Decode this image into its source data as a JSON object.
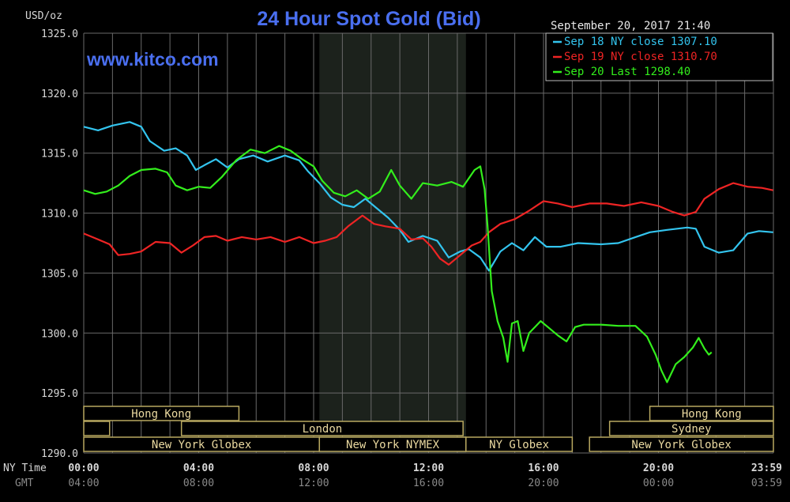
{
  "chart_data": {
    "type": "line",
    "title": "24 Hour Spot Gold (Bid)",
    "watermark": "www.kitco.com",
    "unit_label": "USD/oz",
    "timestamp": "September 20, 2017 21:40",
    "ylim": [
      1290,
      1325
    ],
    "y_ticks": [
      "1325.0",
      "1320.0",
      "1315.0",
      "1310.0",
      "1305.0",
      "1300.0",
      "1295.0",
      "1290.0"
    ],
    "y_tick_values": [
      1325,
      1320,
      1315,
      1310,
      1305,
      1300,
      1295,
      1290
    ],
    "x_range_hours": [
      0,
      24
    ],
    "ny_time_label": "NY Time",
    "gmt_label": "GMT",
    "x_ticks_ny": [
      "00:00",
      "04:00",
      "08:00",
      "12:00",
      "16:00",
      "20:00",
      "23:59"
    ],
    "x_ticks_gmt": [
      "04:00",
      "08:00",
      "12:00",
      "16:00",
      "20:00",
      "00:00",
      "03:59"
    ],
    "x_tick_hours": [
      0,
      4,
      8,
      12,
      16,
      20,
      24
    ],
    "grid": true,
    "legend_placement": "top-right",
    "shaded_period_hours": [
      8.2,
      13.3
    ],
    "colors": {
      "background": "#000000",
      "grid": "#6a6a6a",
      "title": "#4a6ff0",
      "axis_text": "#d8d8d8",
      "gmt_text": "#8a8a8a",
      "shade": "#1c221c",
      "session_box": "#b8a860",
      "session_text": "#ead9a0"
    },
    "sessions": [
      {
        "label": "Hong Kong",
        "start": 0,
        "end": 5.4,
        "row": 0
      },
      {
        "label": "",
        "start": 0,
        "end": 0.9,
        "row": 1
      },
      {
        "label": "London",
        "start": 3.4,
        "end": 13.2,
        "row": 1
      },
      {
        "label": "New York Globex",
        "start": 0,
        "end": 8.2,
        "row": 2
      },
      {
        "label": "New York NYMEX",
        "start": 8.2,
        "end": 13.3,
        "row": 2
      },
      {
        "label": "NY Globex",
        "start": 13.3,
        "end": 17.0,
        "row": 2
      },
      {
        "label": "Hong Kong",
        "start": 19.7,
        "end": 24,
        "row": 0
      },
      {
        "label": "Sydney",
        "start": 18.3,
        "end": 24,
        "row": 1
      },
      {
        "label": "New York Globex",
        "start": 17.6,
        "end": 24,
        "row": 2
      }
    ],
    "series": [
      {
        "name": "Sep 18 NY close 1307.10",
        "color": "#33c4ee",
        "points": [
          [
            0,
            1317.2
          ],
          [
            0.5,
            1316.9
          ],
          [
            1,
            1317.3
          ],
          [
            1.6,
            1317.6
          ],
          [
            2,
            1317.2
          ],
          [
            2.3,
            1316.0
          ],
          [
            2.8,
            1315.2
          ],
          [
            3.2,
            1315.4
          ],
          [
            3.6,
            1314.8
          ],
          [
            3.9,
            1313.6
          ],
          [
            4.2,
            1314.0
          ],
          [
            4.6,
            1314.5
          ],
          [
            5,
            1313.8
          ],
          [
            5.4,
            1314.5
          ],
          [
            5.9,
            1314.8
          ],
          [
            6.4,
            1314.3
          ],
          [
            7,
            1314.8
          ],
          [
            7.5,
            1314.4
          ],
          [
            7.8,
            1313.5
          ],
          [
            8.2,
            1312.5
          ],
          [
            8.6,
            1311.3
          ],
          [
            9,
            1310.7
          ],
          [
            9.4,
            1310.5
          ],
          [
            9.8,
            1311.2
          ],
          [
            10.2,
            1310.4
          ],
          [
            10.6,
            1309.6
          ],
          [
            11,
            1308.6
          ],
          [
            11.3,
            1307.6
          ],
          [
            11.8,
            1308.1
          ],
          [
            12.3,
            1307.7
          ],
          [
            12.7,
            1306.3
          ],
          [
            13.1,
            1306.8
          ],
          [
            13.4,
            1307.0
          ],
          [
            13.8,
            1306.3
          ],
          [
            14.1,
            1305.2
          ],
          [
            14.5,
            1306.8
          ],
          [
            14.9,
            1307.5
          ],
          [
            15.3,
            1306.9
          ],
          [
            15.7,
            1308.0
          ],
          [
            16.1,
            1307.2
          ],
          [
            16.6,
            1307.2
          ],
          [
            17.2,
            1307.5
          ],
          [
            18,
            1307.4
          ],
          [
            18.6,
            1307.5
          ],
          [
            19.2,
            1308.0
          ],
          [
            19.7,
            1308.4
          ],
          [
            20.3,
            1308.6
          ],
          [
            21.0,
            1308.8
          ],
          [
            21.3,
            1308.7
          ],
          [
            21.6,
            1307.2
          ],
          [
            22.1,
            1306.7
          ],
          [
            22.6,
            1306.9
          ],
          [
            23.1,
            1308.3
          ],
          [
            23.5,
            1308.5
          ],
          [
            23.99,
            1308.4
          ]
        ]
      },
      {
        "name": "Sep 19 NY close 1310.70",
        "color": "#ee2424",
        "points": [
          [
            0,
            1308.3
          ],
          [
            0.5,
            1307.8
          ],
          [
            0.9,
            1307.4
          ],
          [
            1.2,
            1306.5
          ],
          [
            1.6,
            1306.6
          ],
          [
            2,
            1306.8
          ],
          [
            2.5,
            1307.6
          ],
          [
            3,
            1307.5
          ],
          [
            3.4,
            1306.7
          ],
          [
            3.8,
            1307.3
          ],
          [
            4.2,
            1308.0
          ],
          [
            4.6,
            1308.1
          ],
          [
            5,
            1307.7
          ],
          [
            5.5,
            1308.0
          ],
          [
            6,
            1307.8
          ],
          [
            6.5,
            1308.0
          ],
          [
            7,
            1307.6
          ],
          [
            7.5,
            1308.0
          ],
          [
            8,
            1307.5
          ],
          [
            8.4,
            1307.7
          ],
          [
            8.8,
            1308.0
          ],
          [
            9.2,
            1308.9
          ],
          [
            9.7,
            1309.8
          ],
          [
            10.1,
            1309.1
          ],
          [
            10.5,
            1308.9
          ],
          [
            11,
            1308.7
          ],
          [
            11.4,
            1307.8
          ],
          [
            11.8,
            1307.9
          ],
          [
            12.1,
            1307.2
          ],
          [
            12.4,
            1306.2
          ],
          [
            12.7,
            1305.7
          ],
          [
            13.1,
            1306.5
          ],
          [
            13.5,
            1307.3
          ],
          [
            13.8,
            1307.6
          ],
          [
            14.1,
            1308.4
          ],
          [
            14.5,
            1309.1
          ],
          [
            15,
            1309.5
          ],
          [
            15.5,
            1310.2
          ],
          [
            16,
            1311.0
          ],
          [
            16.5,
            1310.8
          ],
          [
            17,
            1310.5
          ],
          [
            17.6,
            1310.8
          ],
          [
            18.2,
            1310.8
          ],
          [
            18.8,
            1310.6
          ],
          [
            19.4,
            1310.9
          ],
          [
            20,
            1310.6
          ],
          [
            20.5,
            1310.1
          ],
          [
            20.9,
            1309.8
          ],
          [
            21.3,
            1310.1
          ],
          [
            21.6,
            1311.2
          ],
          [
            22.1,
            1312.0
          ],
          [
            22.6,
            1312.5
          ],
          [
            23.1,
            1312.2
          ],
          [
            23.6,
            1312.1
          ],
          [
            23.99,
            1311.9
          ]
        ]
      },
      {
        "name": "Sep 20 Last 1298.40",
        "color": "#33ee1c",
        "points": [
          [
            0,
            1311.9
          ],
          [
            0.4,
            1311.6
          ],
          [
            0.8,
            1311.8
          ],
          [
            1.2,
            1312.3
          ],
          [
            1.6,
            1313.1
          ],
          [
            2.0,
            1313.6
          ],
          [
            2.5,
            1313.7
          ],
          [
            2.9,
            1313.4
          ],
          [
            3.2,
            1312.3
          ],
          [
            3.6,
            1311.9
          ],
          [
            4.0,
            1312.2
          ],
          [
            4.4,
            1312.1
          ],
          [
            4.8,
            1313.0
          ],
          [
            5.3,
            1314.4
          ],
          [
            5.8,
            1315.3
          ],
          [
            6.3,
            1315.0
          ],
          [
            6.8,
            1315.6
          ],
          [
            7.2,
            1315.2
          ],
          [
            7.6,
            1314.5
          ],
          [
            8.0,
            1313.9
          ],
          [
            8.3,
            1312.7
          ],
          [
            8.7,
            1311.7
          ],
          [
            9.1,
            1311.4
          ],
          [
            9.5,
            1311.9
          ],
          [
            9.9,
            1311.2
          ],
          [
            10.3,
            1311.8
          ],
          [
            10.7,
            1313.6
          ],
          [
            11.0,
            1312.3
          ],
          [
            11.4,
            1311.2
          ],
          [
            11.8,
            1312.5
          ],
          [
            12.3,
            1312.3
          ],
          [
            12.8,
            1312.6
          ],
          [
            13.2,
            1312.2
          ],
          [
            13.6,
            1313.6
          ],
          [
            13.8,
            1313.9
          ],
          [
            13.95,
            1312.0
          ],
          [
            14.05,
            1309.0
          ],
          [
            14.2,
            1303.5
          ],
          [
            14.4,
            1301.0
          ],
          [
            14.6,
            1299.6
          ],
          [
            14.75,
            1297.6
          ],
          [
            14.9,
            1300.8
          ],
          [
            15.1,
            1301.0
          ],
          [
            15.3,
            1298.5
          ],
          [
            15.5,
            1300.0
          ],
          [
            15.7,
            1300.5
          ],
          [
            15.9,
            1301.0
          ],
          [
            16.2,
            1300.4
          ],
          [
            16.5,
            1299.8
          ],
          [
            16.8,
            1299.3
          ],
          [
            17.1,
            1300.5
          ],
          [
            17.4,
            1300.7
          ],
          [
            18,
            1300.7
          ],
          [
            18.6,
            1300.6
          ],
          [
            19.2,
            1300.6
          ],
          [
            19.6,
            1299.7
          ],
          [
            19.9,
            1298.2
          ],
          [
            20.1,
            1296.9
          ],
          [
            20.3,
            1295.9
          ],
          [
            20.6,
            1297.4
          ],
          [
            20.9,
            1298.0
          ],
          [
            21.2,
            1298.8
          ],
          [
            21.4,
            1299.6
          ],
          [
            21.6,
            1298.7
          ],
          [
            21.75,
            1298.2
          ],
          [
            21.85,
            1298.4
          ]
        ]
      }
    ]
  }
}
